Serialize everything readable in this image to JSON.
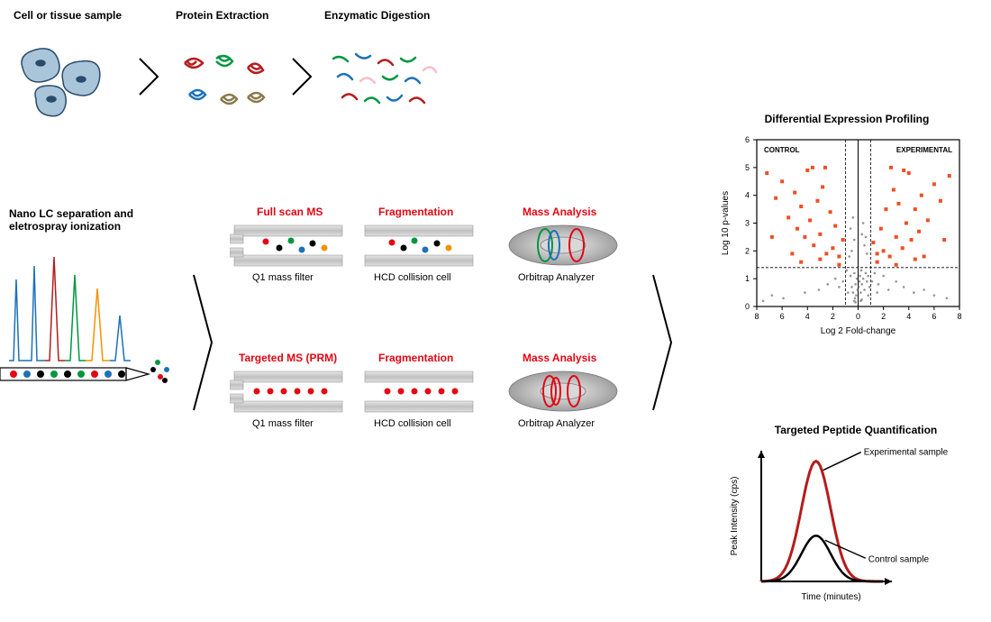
{
  "top_row": {
    "step1_label": "Cell or tissue sample",
    "step2_label": "Protein Extraction",
    "step3_label": "Enzymatic Digestion"
  },
  "middle": {
    "lc_label": "Nano LC separation and eletrospray ionization",
    "full_scan": {
      "title": "Full scan MS",
      "q1_label": "Q1 mass filter",
      "frag_title": "Fragmentation",
      "frag_label": "HCD collision cell",
      "mass_title": "Mass Analysis",
      "mass_label": "Orbitrap Analyzer",
      "dot_colors": [
        "#e30613",
        "#009640",
        "#000000",
        "#1d71b8",
        "#000000",
        "#f39200",
        "#000000",
        "#009640"
      ]
    },
    "prm": {
      "title": "Targeted MS (PRM)",
      "q1_label": "Q1 mass filter",
      "frag_title": "Fragmentation",
      "frag_label": "HCD collision cell",
      "mass_title": "Mass Analysis",
      "mass_label": "Orbitrap Analyzer"
    }
  },
  "volcano": {
    "title": "Differential Expression Profiling",
    "control_label": "CONTROL",
    "exp_label": "EXPERIMENTAL",
    "ylabel": "Log 10 p-values",
    "xlabel": "Log 2 Fold-change",
    "xlim": [
      -8,
      8
    ],
    "xticks": [
      -8,
      -6,
      -4,
      -2,
      0,
      2,
      4,
      6,
      8
    ],
    "xtick_labels": [
      "8",
      "6",
      "4",
      "2",
      "0",
      "2",
      "4",
      "6",
      "8"
    ],
    "ylim": [
      0,
      6
    ],
    "yticks": [
      0,
      1,
      2,
      3,
      4,
      5,
      6
    ],
    "sig_threshold_y": 1.4,
    "fc_threshold_x": 1.0,
    "point_color_sig": "#f04e23",
    "point_color_nonsig": "#666666",
    "grey_points": [
      [
        -7.5,
        0.2
      ],
      [
        -6.8,
        0.4
      ],
      [
        -5.9,
        0.3
      ],
      [
        -4.2,
        0.5
      ],
      [
        -3.1,
        0.6
      ],
      [
        -2.4,
        0.8
      ],
      [
        -1.8,
        1.0
      ],
      [
        -1.2,
        0.9
      ],
      [
        -0.9,
        1.3
      ],
      [
        -0.6,
        1.1
      ],
      [
        -0.5,
        0.7
      ],
      [
        -0.4,
        0.5
      ],
      [
        -0.3,
        1.2
      ],
      [
        -0.2,
        0.8
      ],
      [
        -0.15,
        0.4
      ],
      [
        -0.1,
        1.0
      ],
      [
        -0.05,
        0.6
      ],
      [
        0.05,
        0.7
      ],
      [
        0.1,
        0.9
      ],
      [
        0.15,
        1.1
      ],
      [
        0.2,
        0.5
      ],
      [
        0.25,
        1.3
      ],
      [
        0.3,
        0.8
      ],
      [
        0.4,
        1.0
      ],
      [
        0.5,
        0.6
      ],
      [
        0.6,
        1.2
      ],
      [
        0.7,
        0.9
      ],
      [
        0.8,
        1.1
      ],
      [
        0.9,
        0.7
      ],
      [
        1.1,
        0.9
      ],
      [
        1.3,
        1.2
      ],
      [
        1.6,
        0.8
      ],
      [
        2.0,
        1.1
      ],
      [
        2.4,
        0.6
      ],
      [
        3.0,
        0.9
      ],
      [
        3.6,
        0.7
      ],
      [
        4.4,
        0.5
      ],
      [
        5.2,
        0.6
      ],
      [
        6.0,
        0.4
      ],
      [
        7.0,
        0.3
      ],
      [
        -0.3,
        0.2
      ],
      [
        -0.25,
        0.3
      ],
      [
        -0.2,
        0.15
      ],
      [
        0.2,
        0.2
      ],
      [
        0.3,
        0.25
      ],
      [
        -0.8,
        0.5
      ],
      [
        0.8,
        0.4
      ],
      [
        -1.5,
        0.7
      ],
      [
        1.5,
        0.5
      ],
      [
        -0.5,
        2.0
      ],
      [
        0.5,
        2.2
      ],
      [
        -0.6,
        2.8
      ],
      [
        0.6,
        2.5
      ],
      [
        -0.4,
        3.2
      ],
      [
        0.4,
        3.0
      ],
      [
        -0.7,
        1.8
      ],
      [
        0.7,
        1.9
      ],
      [
        -0.3,
        2.4
      ],
      [
        0.3,
        2.6
      ]
    ],
    "orange_points": [
      [
        -7.2,
        4.8
      ],
      [
        -6.5,
        3.9
      ],
      [
        -6.0,
        4.5
      ],
      [
        -5.5,
        3.2
      ],
      [
        -5.0,
        4.1
      ],
      [
        -4.8,
        2.8
      ],
      [
        -4.5,
        3.6
      ],
      [
        -4.2,
        2.5
      ],
      [
        -4.0,
        4.9
      ],
      [
        -3.8,
        3.1
      ],
      [
        -3.5,
        2.2
      ],
      [
        -3.2,
        3.8
      ],
      [
        -3.0,
        2.6
      ],
      [
        -2.8,
        4.3
      ],
      [
        -2.5,
        1.9
      ],
      [
        -2.2,
        3.4
      ],
      [
        -2.0,
        2.1
      ],
      [
        -1.8,
        2.9
      ],
      [
        -1.5,
        1.8
      ],
      [
        -1.2,
        2.4
      ],
      [
        1.2,
        2.3
      ],
      [
        1.5,
        1.9
      ],
      [
        1.8,
        2.8
      ],
      [
        2.0,
        2.0
      ],
      [
        2.2,
        3.5
      ],
      [
        2.5,
        1.8
      ],
      [
        2.8,
        4.2
      ],
      [
        3.0,
        2.5
      ],
      [
        3.2,
        3.7
      ],
      [
        3.5,
        2.1
      ],
      [
        3.8,
        3.0
      ],
      [
        4.0,
        4.8
      ],
      [
        4.2,
        2.4
      ],
      [
        4.5,
        3.5
      ],
      [
        4.8,
        2.7
      ],
      [
        5.0,
        4.0
      ],
      [
        5.5,
        3.1
      ],
      [
        6.0,
        4.4
      ],
      [
        6.5,
        3.8
      ],
      [
        7.2,
        4.7
      ],
      [
        -6.8,
        2.5
      ],
      [
        -5.2,
        1.9
      ],
      [
        -3.6,
        5.0
      ],
      [
        -2.6,
        5.0
      ],
      [
        2.6,
        5.0
      ],
      [
        3.6,
        4.9
      ],
      [
        5.2,
        1.8
      ],
      [
        6.8,
        2.4
      ],
      [
        -4.5,
        1.6
      ],
      [
        -3.0,
        1.7
      ],
      [
        -1.5,
        1.5
      ],
      [
        1.5,
        1.6
      ],
      [
        3.0,
        1.5
      ],
      [
        4.5,
        1.7
      ]
    ]
  },
  "peak_chart": {
    "title": "Targeted Peptide Quantification",
    "ylabel": "Peak Intensity (cps)",
    "xlabel": "Time (minutes)",
    "exp_label": "Experimental sample",
    "ctrl_label": "Control sample",
    "peak_center": 0.45,
    "peak_width": 0.12,
    "exp_height": 0.92,
    "ctrl_height": 0.35,
    "exp_color": "#b51c1c",
    "ctrl_color": "#000000"
  },
  "colors": {
    "red": "#e30613",
    "green": "#009640",
    "blue": "#1d71b8",
    "orange": "#f39200",
    "black": "#000000",
    "cell_fill": "#a8c5d9",
    "cell_stroke": "#2a4a6b",
    "grey": "#b0b0b0"
  }
}
